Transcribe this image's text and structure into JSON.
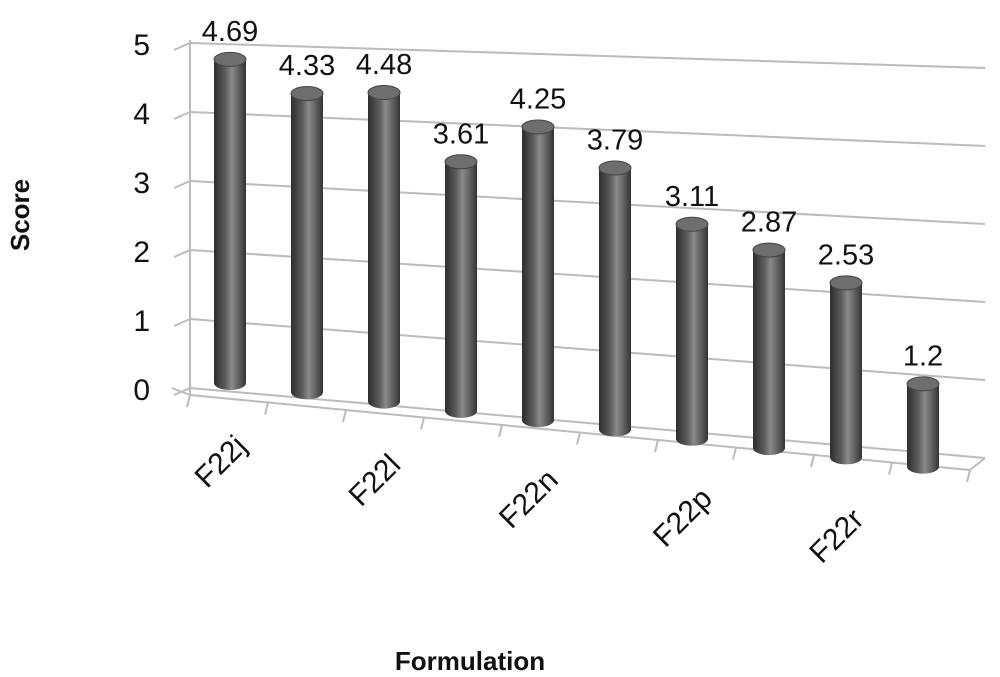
{
  "chart_data": {
    "type": "bar",
    "x_label": "Formulation",
    "y_label": "Score",
    "categories": [
      "F22j",
      null,
      "F22l",
      null,
      "F22n",
      null,
      "F22p",
      null,
      "F22r",
      null
    ],
    "values": [
      4.69,
      4.33,
      4.48,
      3.61,
      4.25,
      3.79,
      3.11,
      2.87,
      2.53,
      1.2
    ],
    "color": "#5c5c5c",
    "ylim": [
      0,
      5
    ],
    "yticks": [
      0,
      1,
      2,
      3,
      4,
      5
    ],
    "grid": true
  }
}
